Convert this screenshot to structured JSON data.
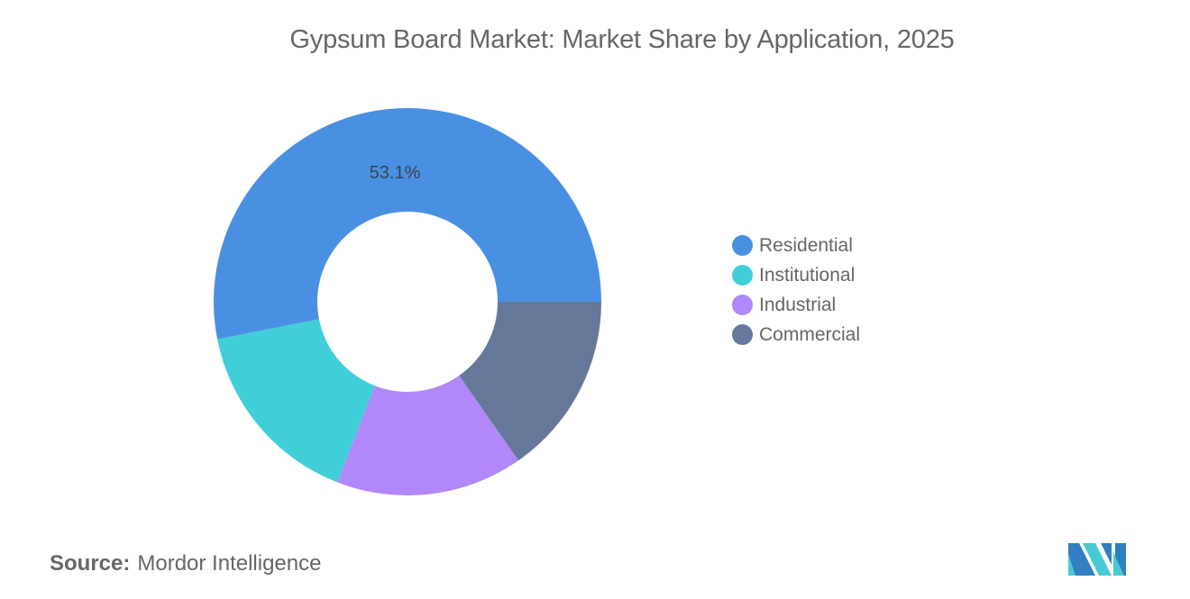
{
  "title": "Gypsum Board Market: Market Share by Application, 2025",
  "source": {
    "label": "Source:",
    "value": "Mordor Intelligence"
  },
  "chart_data": {
    "type": "pie",
    "subtype": "donut",
    "title": "Gypsum Board Market: Market Share by Application, 2025",
    "categories": [
      "Residential",
      "Institutional",
      "Industrial",
      "Commercial"
    ],
    "values": [
      53.1,
      16.0,
      15.6,
      15.3
    ],
    "colors": [
      "#4a90e2",
      "#40cfd8",
      "#b088f9",
      "#66789a"
    ],
    "data_labels": [
      {
        "category": "Residential",
        "text": "53.1%"
      }
    ],
    "legend_position": "right"
  },
  "legend": {
    "items": [
      {
        "label": "Residential",
        "color": "#4a90e2"
      },
      {
        "label": "Institutional",
        "color": "#40cfd8"
      },
      {
        "label": "Industrial",
        "color": "#b088f9"
      },
      {
        "label": "Commercial",
        "color": "#66789a"
      }
    ]
  },
  "slice_label": "53.1%"
}
